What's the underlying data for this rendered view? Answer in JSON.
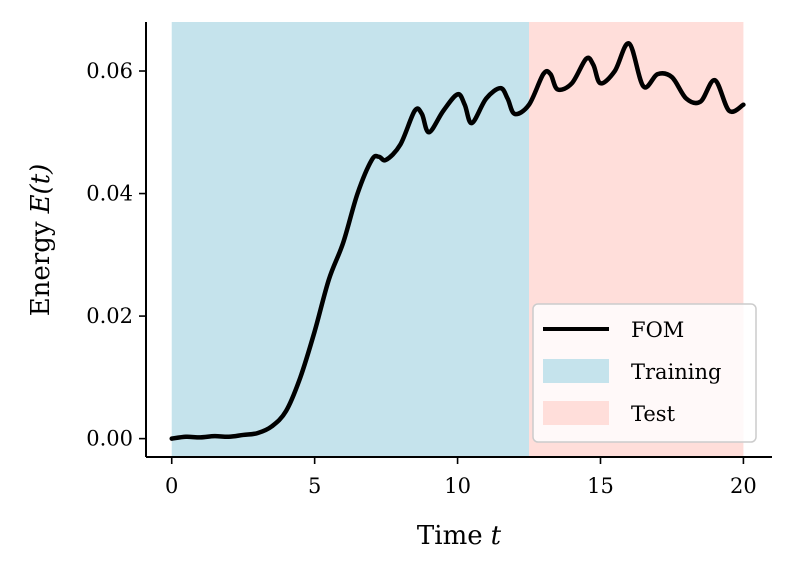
{
  "chart_data": {
    "type": "line",
    "title": "",
    "xlabel": "Time",
    "xlabel_var": "t",
    "ylabel": "Energy",
    "ylabel_var": "E(t)",
    "xlim": [
      -0.9,
      21.0
    ],
    "ylim": [
      -0.003,
      0.068
    ],
    "xticks": [
      0,
      5,
      10,
      15,
      20
    ],
    "xtick_labels": [
      "0",
      "5",
      "10",
      "15",
      "20"
    ],
    "yticks": [
      0.0,
      0.02,
      0.04,
      0.06
    ],
    "ytick_labels": [
      "0.00",
      "0.02",
      "0.04",
      "0.06"
    ],
    "grid": false,
    "legend_position": "lower-right",
    "regions": [
      {
        "name": "Training",
        "x_start": 0,
        "x_end": 12.5,
        "color": "#c5e3ec"
      },
      {
        "name": "Test",
        "x_start": 12.5,
        "x_end": 20,
        "color": "#ffdeda"
      }
    ],
    "series": [
      {
        "name": "FOM",
        "color": "#000000",
        "x": [
          0,
          0.5,
          1,
          1.5,
          2,
          2.5,
          3,
          3.5,
          4,
          4.5,
          5,
          5.5,
          6,
          6.5,
          7,
          7.25,
          7.5,
          8,
          8.5,
          8.75,
          9,
          9.5,
          10,
          10.25,
          10.5,
          11,
          11.5,
          11.75,
          12,
          12.5,
          13,
          13.25,
          13.5,
          14,
          14.5,
          14.75,
          15,
          15.5,
          16,
          16.5,
          17,
          17.5,
          18,
          18.5,
          19,
          19.5,
          20
        ],
        "y": [
          0.0,
          0.0003,
          0.0002,
          0.0004,
          0.0003,
          0.0006,
          0.0009,
          0.002,
          0.0045,
          0.01,
          0.0175,
          0.026,
          0.032,
          0.04,
          0.0455,
          0.046,
          0.0455,
          0.048,
          0.0535,
          0.053,
          0.05,
          0.0535,
          0.0562,
          0.0545,
          0.0515,
          0.0555,
          0.0572,
          0.0555,
          0.053,
          0.0545,
          0.0595,
          0.0595,
          0.057,
          0.058,
          0.062,
          0.061,
          0.058,
          0.06,
          0.0645,
          0.0575,
          0.0595,
          0.059,
          0.0555,
          0.055,
          0.0585,
          0.0535,
          0.0545
        ]
      }
    ]
  },
  "legend": {
    "entries": [
      {
        "label": "FOM",
        "kind": "line",
        "color": "#000000"
      },
      {
        "label": "Training",
        "kind": "patch",
        "color": "#c5e3ec"
      },
      {
        "label": "Test",
        "kind": "patch",
        "color": "#ffdeda"
      }
    ]
  }
}
